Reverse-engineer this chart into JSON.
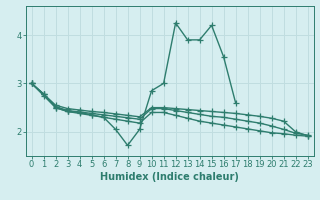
{
  "x": [
    0,
    1,
    2,
    3,
    4,
    5,
    6,
    7,
    8,
    9,
    10,
    11,
    12,
    13,
    14,
    15,
    16,
    17,
    18,
    19,
    20,
    21,
    22,
    23
  ],
  "line1_spike": {
    "x": [
      0,
      1,
      2,
      3,
      4,
      5,
      6,
      7,
      8,
      9,
      10,
      11,
      12,
      13,
      14,
      15,
      16,
      17
    ],
    "y": [
      3.0,
      2.75,
      2.5,
      2.42,
      2.4,
      2.35,
      2.3,
      2.05,
      1.72,
      2.05,
      2.85,
      3.0,
      4.25,
      3.9,
      3.9,
      4.2,
      3.55,
      2.6
    ]
  },
  "line2_straight": {
    "x": [
      0,
      1,
      2,
      3,
      4,
      5,
      6,
      7,
      8,
      9,
      10,
      11,
      12,
      13,
      14,
      15,
      16,
      17,
      18,
      19,
      20,
      21,
      22,
      23
    ],
    "y": [
      3.0,
      2.78,
      2.55,
      2.48,
      2.45,
      2.42,
      2.4,
      2.37,
      2.34,
      2.31,
      2.5,
      2.5,
      2.48,
      2.46,
      2.44,
      2.42,
      2.4,
      2.38,
      2.35,
      2.32,
      2.28,
      2.22,
      2.0,
      1.92
    ]
  },
  "line3_mid": {
    "x": [
      0,
      1,
      2,
      3,
      4,
      5,
      6,
      7,
      8,
      9,
      10,
      11,
      12,
      13,
      14,
      15,
      16,
      17,
      18,
      19,
      20,
      21,
      22,
      23
    ],
    "y": [
      3.0,
      2.78,
      2.52,
      2.44,
      2.41,
      2.38,
      2.35,
      2.32,
      2.29,
      2.26,
      2.48,
      2.48,
      2.44,
      2.4,
      2.36,
      2.32,
      2.3,
      2.26,
      2.22,
      2.18,
      2.12,
      2.05,
      1.97,
      1.93
    ]
  },
  "line4_low": {
    "x": [
      0,
      1,
      2,
      3,
      4,
      5,
      6,
      7,
      8,
      9,
      10,
      11,
      12,
      13,
      14,
      15,
      16,
      17,
      18,
      19,
      20,
      21,
      22,
      23
    ],
    "y": [
      3.0,
      2.78,
      2.5,
      2.42,
      2.38,
      2.34,
      2.3,
      2.26,
      2.22,
      2.18,
      2.4,
      2.4,
      2.34,
      2.28,
      2.22,
      2.18,
      2.14,
      2.1,
      2.06,
      2.02,
      1.98,
      1.96,
      1.93,
      1.91
    ]
  },
  "line_color": "#2e7d6e",
  "background_color": "#d6eef0",
  "grid_color": "#c0dde0",
  "xlabel": "Humidex (Indice chaleur)",
  "xlabel_fontsize": 7,
  "ylabel_ticks": [
    2,
    3,
    4
  ],
  "xlim": [
    -0.5,
    23.5
  ],
  "ylim": [
    1.5,
    4.6
  ],
  "tick_fontsize": 6,
  "marker": "+",
  "markersize": 4,
  "linewidth": 1.0
}
